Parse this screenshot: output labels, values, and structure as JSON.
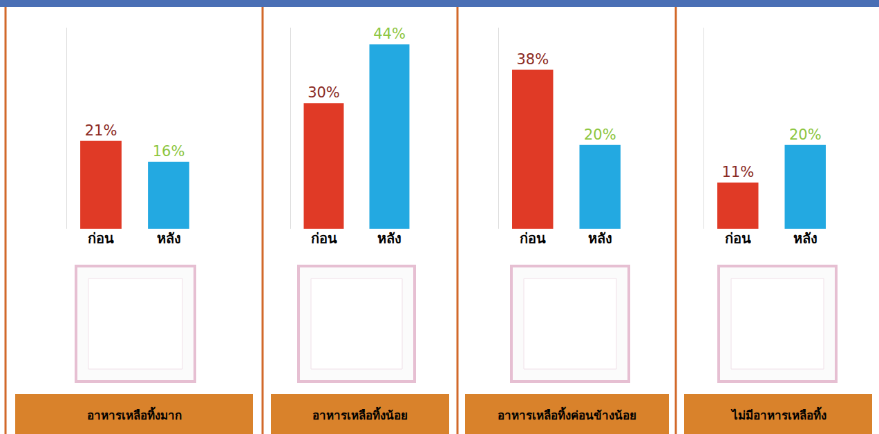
{
  "chart_data": [
    {
      "type": "bar",
      "title": "อาหารเหลือทิ้งมาก",
      "categories": [
        "ก่อน",
        "หลัง"
      ],
      "values": [
        21,
        16
      ],
      "value_labels": [
        "21%",
        "16%"
      ],
      "colors": [
        "#e03a26",
        "#23a9e1"
      ],
      "ylim": [
        0,
        48
      ],
      "data_labels": true,
      "tick_labels": "x",
      "grid": false
    },
    {
      "type": "bar",
      "title": "อาหารเหลือทิ้งน้อย",
      "categories": [
        "ก่อน",
        "หลัง"
      ],
      "values": [
        30,
        44
      ],
      "value_labels": [
        "30%",
        "44%"
      ],
      "colors": [
        "#e03a26",
        "#23a9e1"
      ],
      "ylim": [
        0,
        48
      ],
      "data_labels": true,
      "tick_labels": "x",
      "grid": false
    },
    {
      "type": "bar",
      "title": "อาหารเหลือทิ้งค่อนข้างน้อย",
      "categories": [
        "ก่อน",
        "หลัง"
      ],
      "values": [
        38,
        20
      ],
      "value_labels": [
        "38%",
        "20%"
      ],
      "colors": [
        "#e03a26",
        "#23a9e1"
      ],
      "ylim": [
        0,
        48
      ],
      "data_labels": true,
      "tick_labels": "x",
      "grid": false
    },
    {
      "type": "bar",
      "title": "ไม่มีอาหารเหลือทิ้ง",
      "categories": [
        "ก่อน",
        "หลัง"
      ],
      "values": [
        11,
        20
      ],
      "value_labels": [
        "11%",
        "20%"
      ],
      "colors": [
        "#e03a26",
        "#23a9e1"
      ],
      "ylim": [
        0,
        48
      ],
      "data_labels": true,
      "tick_labels": "x",
      "grid": false
    }
  ]
}
